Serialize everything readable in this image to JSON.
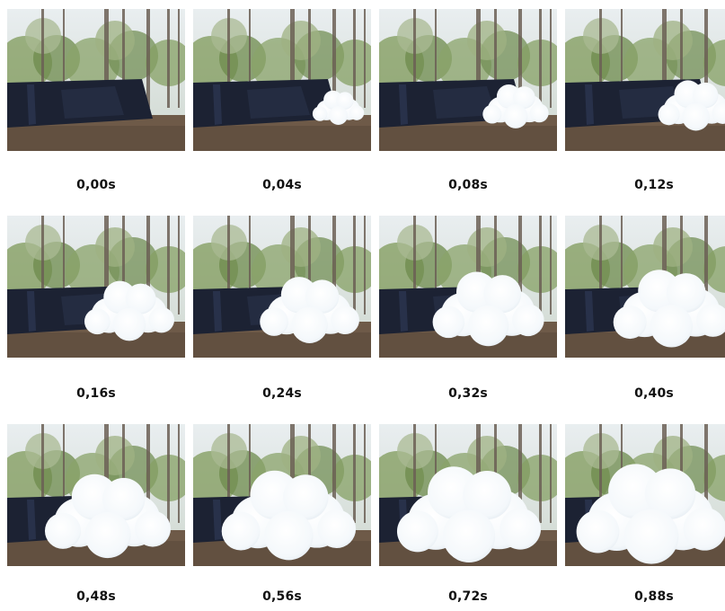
{
  "frames": [
    {
      "time_label": "0,00s",
      "cloud_size": 0.0
    },
    {
      "time_label": "0,04s",
      "cloud_size": 0.18
    },
    {
      "time_label": "0,08s",
      "cloud_size": 0.3
    },
    {
      "time_label": "0,12s",
      "cloud_size": 0.38
    },
    {
      "time_label": "0,16s",
      "cloud_size": 0.5
    },
    {
      "time_label": "0,24s",
      "cloud_size": 0.58
    },
    {
      "time_label": "0,32s",
      "cloud_size": 0.68
    },
    {
      "time_label": "0,40s",
      "cloud_size": 0.72
    },
    {
      "time_label": "0,48s",
      "cloud_size": 0.8
    },
    {
      "time_label": "0,56s",
      "cloud_size": 0.87
    },
    {
      "time_label": "0,72s",
      "cloud_size": 0.95
    },
    {
      "time_label": "0,88s",
      "cloud_size": 1.0
    }
  ]
}
